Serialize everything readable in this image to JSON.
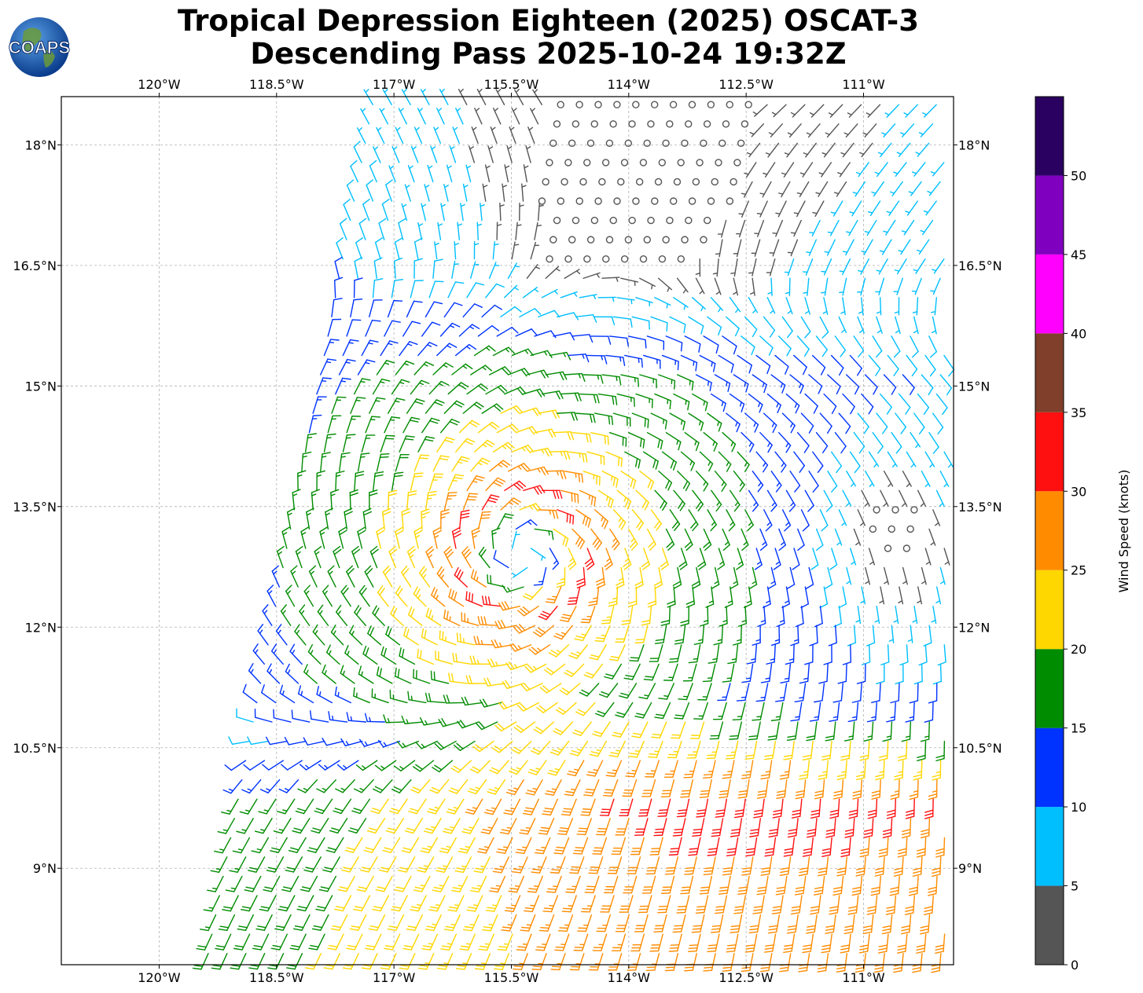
{
  "header": {
    "title_line1": "Tropical Depression Eighteen (2025) OSCAT-3",
    "title_line2": "Descending Pass 2025-10-24 19:32Z",
    "logo_text": "COAPS"
  },
  "map": {
    "lon_range": [
      -121.25,
      -109.85
    ],
    "lat_range": [
      7.8,
      18.6
    ],
    "lon_ticks": [
      {
        "value": -120,
        "label": "120°W"
      },
      {
        "value": -118.5,
        "label": "118.5°W"
      },
      {
        "value": -117,
        "label": "117°W"
      },
      {
        "value": -115.5,
        "label": "115.5°W"
      },
      {
        "value": -114,
        "label": "114°W"
      },
      {
        "value": -112.5,
        "label": "112.5°W"
      },
      {
        "value": -111,
        "label": "111°W"
      }
    ],
    "lat_ticks": [
      {
        "value": 18,
        "label": "18°N"
      },
      {
        "value": 16.5,
        "label": "16.5°N"
      },
      {
        "value": 15,
        "label": "15°N"
      },
      {
        "value": 13.5,
        "label": "13.5°N"
      },
      {
        "value": 12,
        "label": "12°N"
      },
      {
        "value": 10.5,
        "label": "10.5°N"
      },
      {
        "value": 9,
        "label": "9°N"
      }
    ],
    "gridlines": true,
    "storm_center": {
      "lon": -115.35,
      "lat": 12.9
    },
    "swath": {
      "west_edge": [
        {
          "lon": -117.35,
          "lat": 18.6
        },
        {
          "lon": -119.5,
          "lat": 7.8
        }
      ],
      "east_edge_lon": -109.85
    }
  },
  "colorbar": {
    "title": "Wind Speed (knots)",
    "tick_labels": [
      "0",
      "5",
      "10",
      "15",
      "20",
      "25",
      "30",
      "35",
      "40",
      "45",
      "50"
    ],
    "bins": [
      {
        "min": 0,
        "max": 5,
        "color": "#555555"
      },
      {
        "min": 5,
        "max": 10,
        "color": "#00bfff"
      },
      {
        "min": 10,
        "max": 15,
        "color": "#0033ff"
      },
      {
        "min": 15,
        "max": 20,
        "color": "#008c00"
      },
      {
        "min": 20,
        "max": 25,
        "color": "#ffd700"
      },
      {
        "min": 25,
        "max": 30,
        "color": "#ff8c00"
      },
      {
        "min": 30,
        "max": 35,
        "color": "#ff1010"
      },
      {
        "min": 35,
        "max": 40,
        "color": "#7f3f2a"
      },
      {
        "min": 40,
        "max": 45,
        "color": "#ff00ff"
      },
      {
        "min": 45,
        "max": 50,
        "color": "#8000c0"
      },
      {
        "min": 50,
        "max": 55,
        "color": "#2a0060"
      }
    ]
  }
}
